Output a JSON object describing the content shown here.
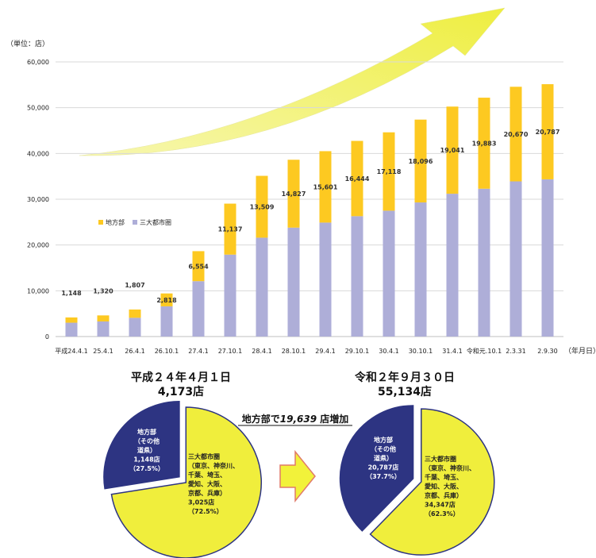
{
  "chart_data": [
    {
      "type": "bar",
      "stacked": true,
      "unit_label": "（単位：店）",
      "x_unit_label": "（年月日）",
      "ylim": [
        0,
        60000
      ],
      "yticks": [
        0,
        10000,
        20000,
        30000,
        40000,
        50000,
        60000
      ],
      "ytick_labels": [
        "0",
        "10,000",
        "20,000",
        "30,000",
        "40,000",
        "50,000",
        "60,000"
      ],
      "grid": true,
      "legend_position": "left-middle",
      "categories": [
        "平成24.4.1",
        "25.4.1",
        "26.4.1",
        "26.10.1",
        "27.4.1",
        "27.10.1",
        "28.4.1",
        "28.10.1",
        "29.4.1",
        "29.10.1",
        "30.4.1",
        "30.10.1",
        "31.4.1",
        "令和元.10.1",
        "2.3.31",
        "2.9.30"
      ],
      "series": [
        {
          "name": "三大都市圏",
          "color": "#aeaed8",
          "values": [
            3025,
            3300,
            4100,
            6600,
            12100,
            17900,
            21600,
            23800,
            24900,
            26300,
            27500,
            29300,
            31200,
            32300,
            33900,
            34347
          ]
        },
        {
          "name": "地方部",
          "color": "#fdc921",
          "values": [
            1148,
            1320,
            1807,
            2818,
            6554,
            11137,
            13509,
            14827,
            15601,
            16444,
            17118,
            18096,
            19041,
            19883,
            20670,
            20787
          ],
          "labels": [
            "1,148",
            "1,320",
            "1,807",
            "2,818",
            "6,554",
            "11,137",
            "13,509",
            "14,827",
            "15,601",
            "16,444",
            "17,118",
            "18,096",
            "19,041",
            "19,883",
            "20,670",
            "20,787"
          ]
        }
      ]
    },
    {
      "type": "pie",
      "title_line1": "平成２４年４月１日",
      "title_line2": "4,173店",
      "slices": [
        {
          "name": "地方部",
          "value": 27.5,
          "color": "#2d3482",
          "text_color": "#ffffff",
          "lines": [
            "地方部",
            "（その他",
            "道県）",
            "1,148店",
            "（27.5%）"
          ]
        },
        {
          "name": "三大都市圏",
          "value": 72.5,
          "color": "#f0ee3c",
          "text_color": "#222222",
          "lines": [
            "三大都市圏",
            "（東京、神奈川、",
            "千葉、埼玉、",
            "愛知、大阪、",
            "京都、兵庫）",
            "3,025店",
            "（72.5%）"
          ]
        }
      ]
    },
    {
      "type": "pie",
      "title_line1": "令和２年９月３０日",
      "title_line2": "55,134店",
      "slices": [
        {
          "name": "地方部",
          "value": 37.7,
          "color": "#2d3482",
          "text_color": "#ffffff",
          "lines": [
            "地方部",
            "（その他",
            "道県）",
            "20,787店",
            "（37.7%）"
          ]
        },
        {
          "name": "三大都市圏",
          "value": 62.3,
          "color": "#f0ee3c",
          "text_color": "#222222",
          "lines": [
            "三大都市圏",
            "（東京、神奈川、",
            "千葉、埼玉、",
            "愛知、大阪、",
            "京都、兵庫）",
            "34,347店",
            "（62.3%）"
          ]
        }
      ]
    }
  ],
  "annotation": {
    "prefix": "地方部で",
    "number": "19,639",
    "suffix": " 店増加"
  },
  "colors": {
    "arrow_fill": "#f2f25a",
    "grid": "#d9d9d9"
  }
}
